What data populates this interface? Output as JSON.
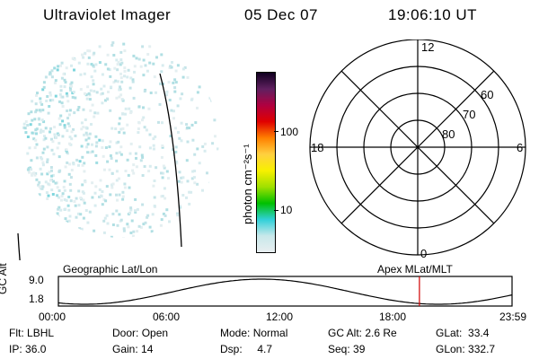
{
  "header": {
    "title": "Ultraviolet Imager",
    "date": "05 Dec 07",
    "time": "19:06:10 UT"
  },
  "colorbar": {
    "unit_label": "photon cm⁻²s⁻¹",
    "ticks": [
      "100",
      "10"
    ],
    "colors": [
      "#e8eef0",
      "#c8e8ea",
      "#30d0d8",
      "#00c000",
      "#a0e000",
      "#f8f000",
      "#ffd040",
      "#ff8000",
      "#e00000",
      "#b00040",
      "#602060",
      "#100020"
    ]
  },
  "polar_plot": {
    "mlt_labels": {
      "top": "12",
      "bottom": "0",
      "left": "18",
      "right": "6"
    },
    "lat_labels": [
      "60",
      "70",
      "80"
    ]
  },
  "timeline": {
    "left_label": "Geographic Lat/Lon",
    "right_label": "Apex MLat/MLT",
    "axis_label": "GC Alt",
    "y_max": "9.0",
    "y_min": "1.8",
    "x_ticks": [
      "00:00",
      "06:00",
      "12:00",
      "18:00",
      "23:59"
    ],
    "marker_time_hours": 19.1,
    "marker_color": "#d00000"
  },
  "info": {
    "row1": [
      {
        "label": "Flt:",
        "value": "LBHL"
      },
      {
        "label": "Door:",
        "value": "Open"
      },
      {
        "label": "Mode:",
        "value": "Normal"
      },
      {
        "label": "GC Alt:",
        "value": "2.6 Re"
      },
      {
        "label": "GLat:",
        "value": "33.4"
      }
    ],
    "row2": [
      {
        "label": "IP:",
        "value": "36.0"
      },
      {
        "label": "Gain:",
        "value": "14"
      },
      {
        "label": "Dsp:",
        "value": "4.7"
      },
      {
        "label": "Seq:",
        "value": "39"
      },
      {
        "label": "GLon:",
        "value": "332.7"
      }
    ]
  }
}
